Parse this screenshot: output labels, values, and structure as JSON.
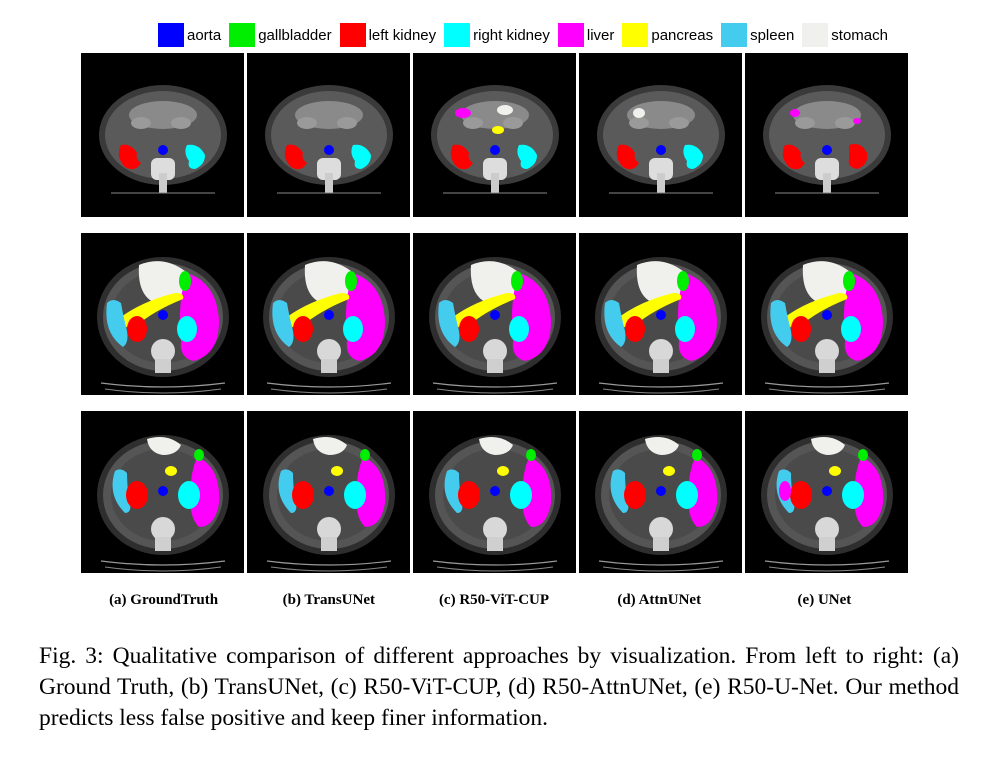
{
  "legend": [
    {
      "label": "aorta",
      "color": "#0000ff"
    },
    {
      "label": "gallbladder",
      "color": "#00ee00"
    },
    {
      "label": "left kidney",
      "color": "#ff0000"
    },
    {
      "label": "right kidney",
      "color": "#00ffff"
    },
    {
      "label": "liver",
      "color": "#ff00ff"
    },
    {
      "label": "pancreas",
      "color": "#ffff00"
    },
    {
      "label": "spleen",
      "color": "#44ccee"
    },
    {
      "label": "stomach",
      "color": "#f0f0ec"
    }
  ],
  "columns": [
    {
      "label": "(a) GroundTruth"
    },
    {
      "label": "(b) TransUNet"
    },
    {
      "label": "(c) R50-ViT-CUP"
    },
    {
      "label": "(d) AttnUNet"
    },
    {
      "label": "(e) UNet"
    }
  ],
  "caption": "Fig. 3: Qualitative comparison of different approaches by visualization. From left to right: (a) Ground Truth, (b) TransUNet, (c) R50-ViT-CUP, (d) R50-AttnUNet, (e) R50-U-Net. Our method predicts less false positive and keep finer information."
}
